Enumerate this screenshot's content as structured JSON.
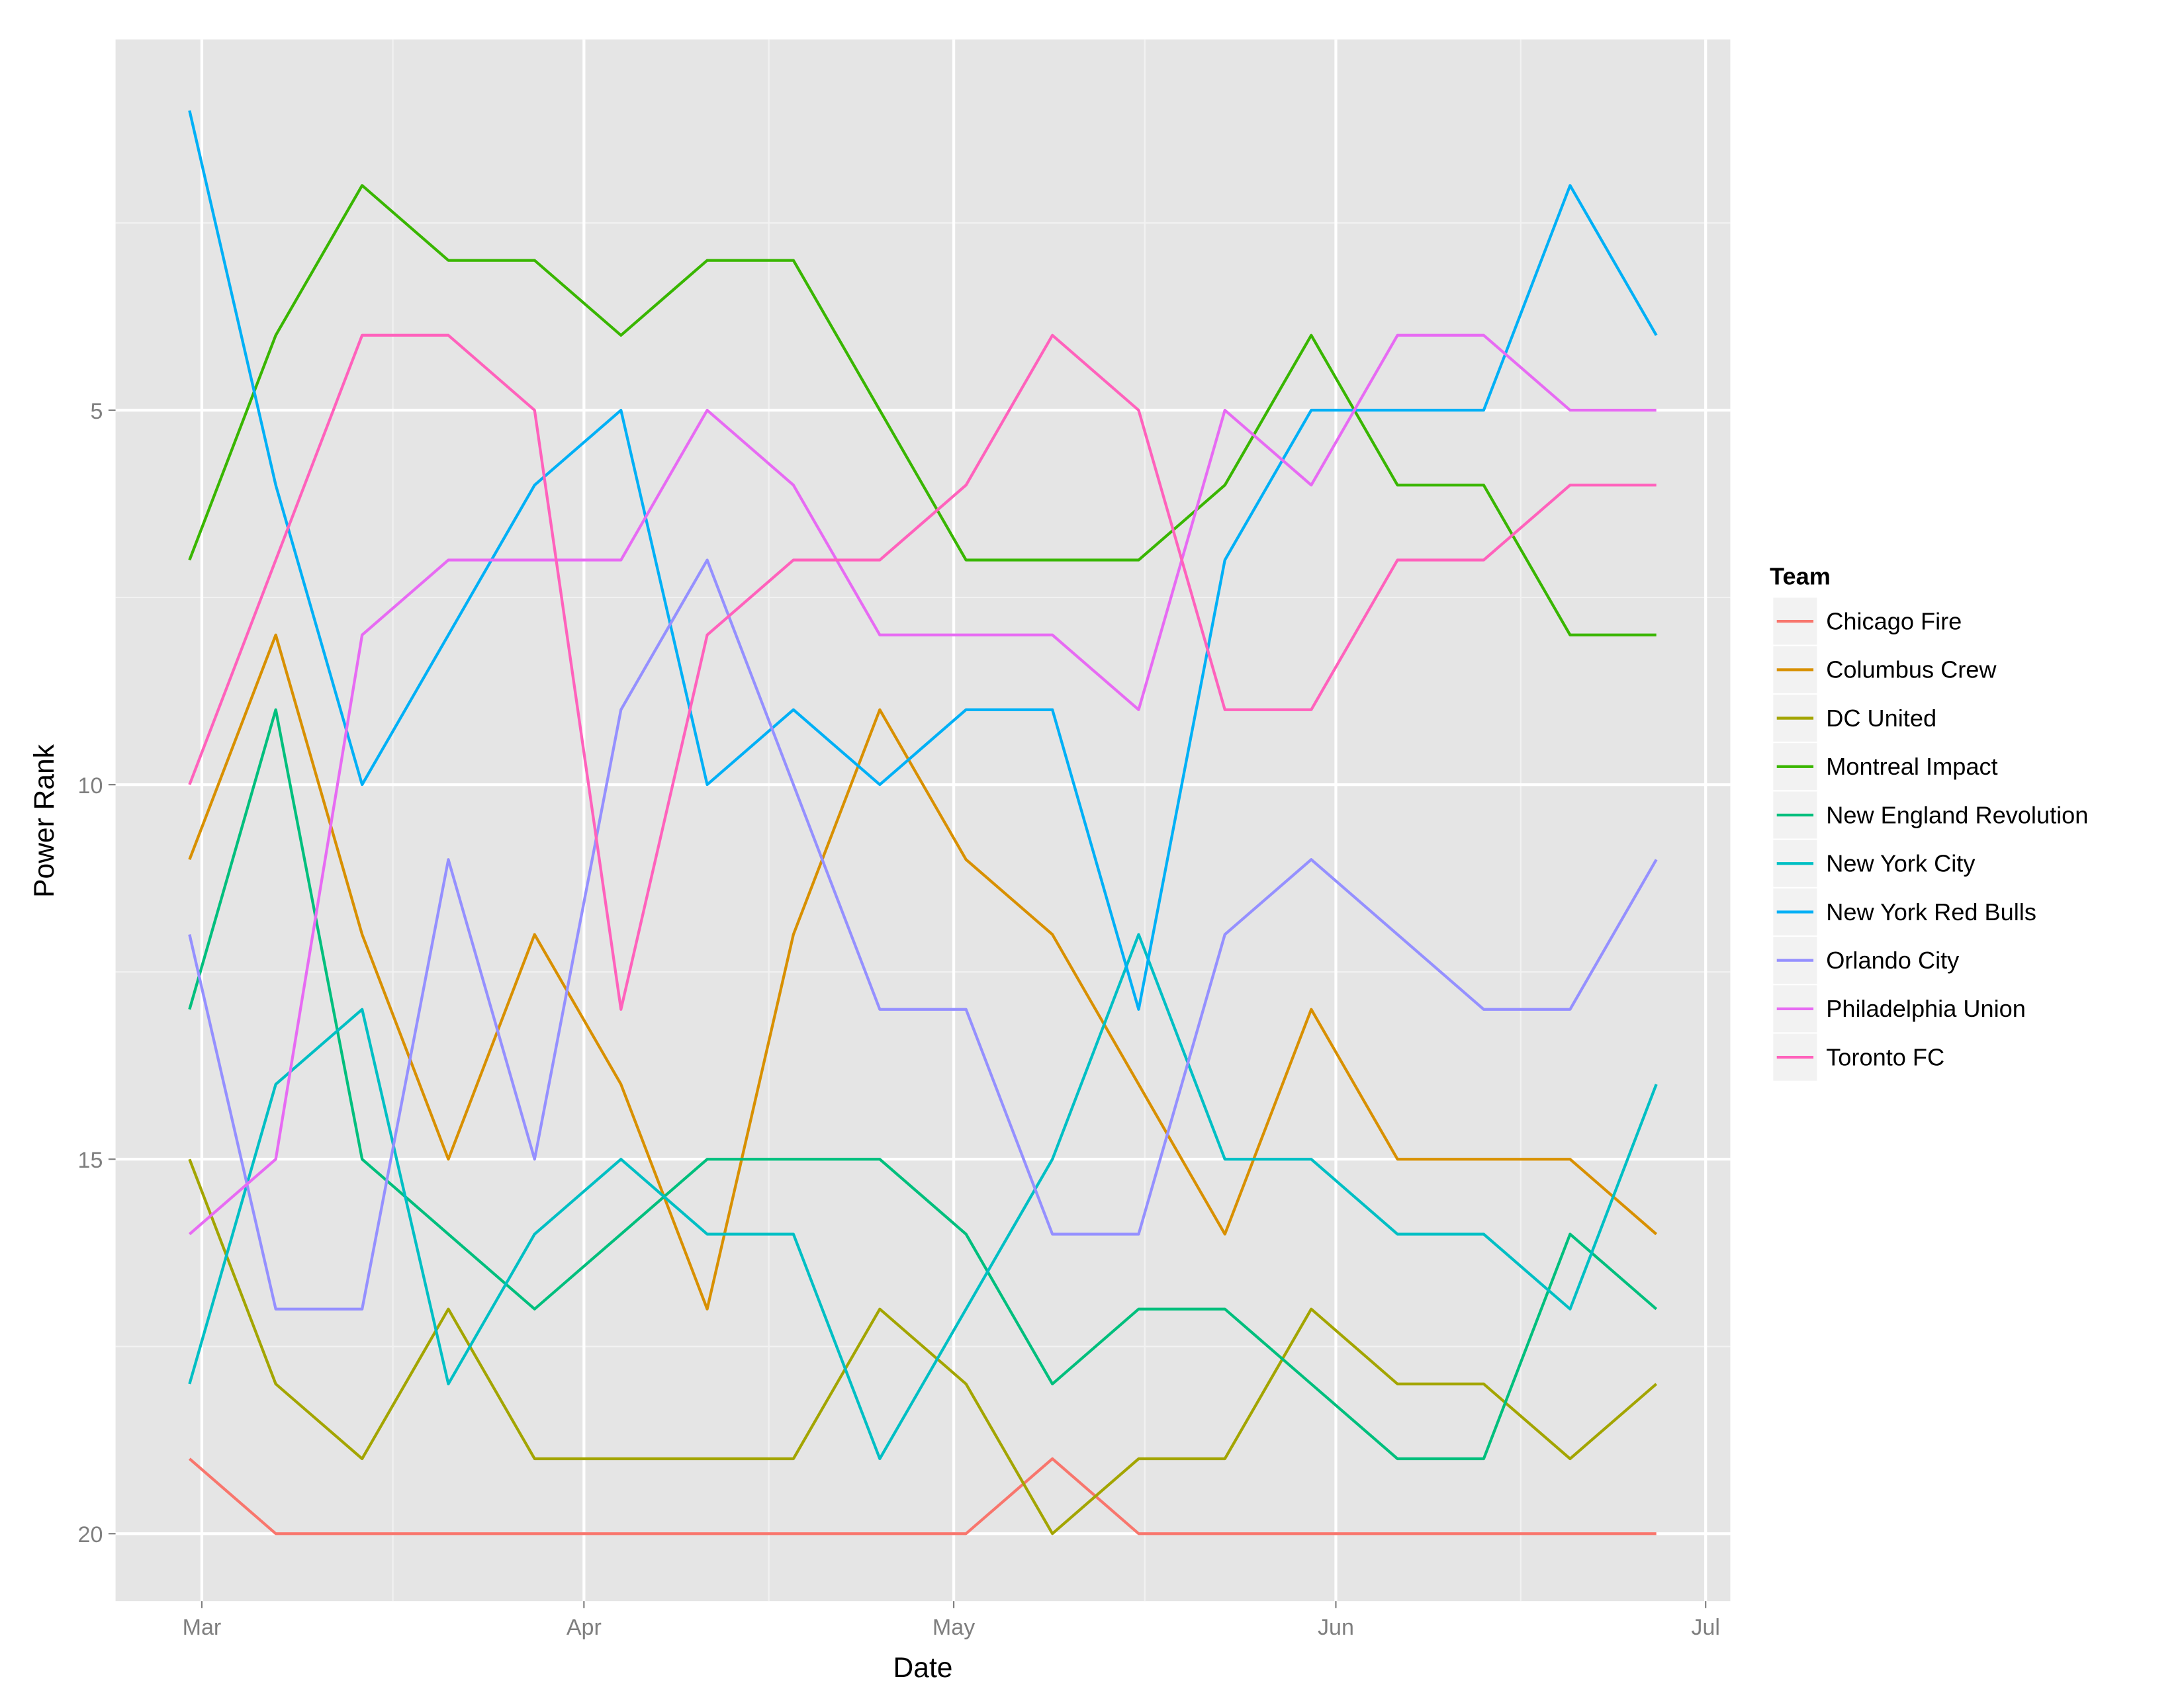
{
  "chart_data": {
    "type": "line",
    "xlabel": "Date",
    "ylabel": "Power Rank",
    "x_ticks": [
      {
        "date": "2015-03-01",
        "label": "Mar"
      },
      {
        "date": "2015-04-01",
        "label": "Apr"
      },
      {
        "date": "2015-05-01",
        "label": "May"
      },
      {
        "date": "2015-06-01",
        "label": "Jun"
      },
      {
        "date": "2015-07-01",
        "label": "Jul"
      }
    ],
    "y_ticks": [
      5,
      10,
      15,
      20
    ],
    "y_reversed": true,
    "ylim": [
      0.05,
      20.9
    ],
    "xlim": [
      "2015-02-22",
      "2015-07-03"
    ],
    "grid": true,
    "legend": {
      "title": "Team",
      "placement": "right"
    },
    "x": [
      "2015-02-28",
      "2015-03-07",
      "2015-03-14",
      "2015-03-21",
      "2015-03-28",
      "2015-04-04",
      "2015-04-11",
      "2015-04-18",
      "2015-04-25",
      "2015-05-02",
      "2015-05-09",
      "2015-05-16",
      "2015-05-23",
      "2015-05-30",
      "2015-06-06",
      "2015-06-13",
      "2015-06-20",
      "2015-06-27"
    ],
    "series": [
      {
        "name": "Chicago Fire",
        "color": "#F8766D",
        "values": [
          19,
          20,
          20,
          20,
          20,
          20,
          20,
          20,
          20,
          20,
          19,
          20,
          20,
          20,
          20,
          20,
          20,
          20
        ]
      },
      {
        "name": "Columbus Crew",
        "color": "#D89000",
        "values": [
          11,
          8,
          12,
          15,
          12,
          14,
          17,
          12,
          9,
          11,
          12,
          14,
          16,
          13,
          15,
          15,
          15,
          16
        ]
      },
      {
        "name": "DC United",
        "color": "#A3A500",
        "values": [
          15,
          18,
          19,
          17,
          19,
          19,
          19,
          19,
          17,
          18,
          20,
          19,
          19,
          17,
          18,
          18,
          19,
          18
        ]
      },
      {
        "name": "Montreal Impact",
        "color": "#39B600",
        "values": [
          7,
          4,
          2,
          3,
          3,
          4,
          3,
          3,
          5,
          7,
          7,
          7,
          6,
          4,
          6,
          6,
          8,
          8
        ]
      },
      {
        "name": "New England Revolution",
        "color": "#00BF7D",
        "values": [
          13,
          9,
          15,
          16,
          17,
          16,
          15,
          15,
          15,
          16,
          18,
          17,
          17,
          18,
          19,
          19,
          16,
          17
        ]
      },
      {
        "name": "New York City",
        "color": "#00BFC4",
        "values": [
          18,
          14,
          13,
          18,
          16,
          15,
          16,
          16,
          19,
          17,
          15,
          12,
          15,
          15,
          16,
          16,
          17,
          14
        ]
      },
      {
        "name": "New York Red Bulls",
        "color": "#00B0F6",
        "values": [
          1,
          6,
          10,
          8,
          6,
          5,
          10,
          9,
          10,
          9,
          9,
          13,
          7,
          5,
          5,
          5,
          2,
          4
        ]
      },
      {
        "name": "Orlando City",
        "color": "#9590FF",
        "values": [
          12,
          17,
          17,
          11,
          15,
          9,
          7,
          10,
          13,
          13,
          16,
          16,
          12,
          11,
          12,
          13,
          13,
          11
        ]
      },
      {
        "name": "Philadelphia Union",
        "color": "#E76BF3",
        "values": [
          16,
          15,
          8,
          7,
          7,
          7,
          5,
          6,
          8,
          8,
          8,
          9,
          5,
          6,
          4,
          4,
          5,
          5
        ]
      },
      {
        "name": "Toronto FC",
        "color": "#FF62BC",
        "values": [
          10,
          7,
          4,
          4,
          5,
          13,
          8,
          7,
          7,
          6,
          4,
          5,
          9,
          9,
          7,
          7,
          6,
          6
        ]
      }
    ]
  }
}
